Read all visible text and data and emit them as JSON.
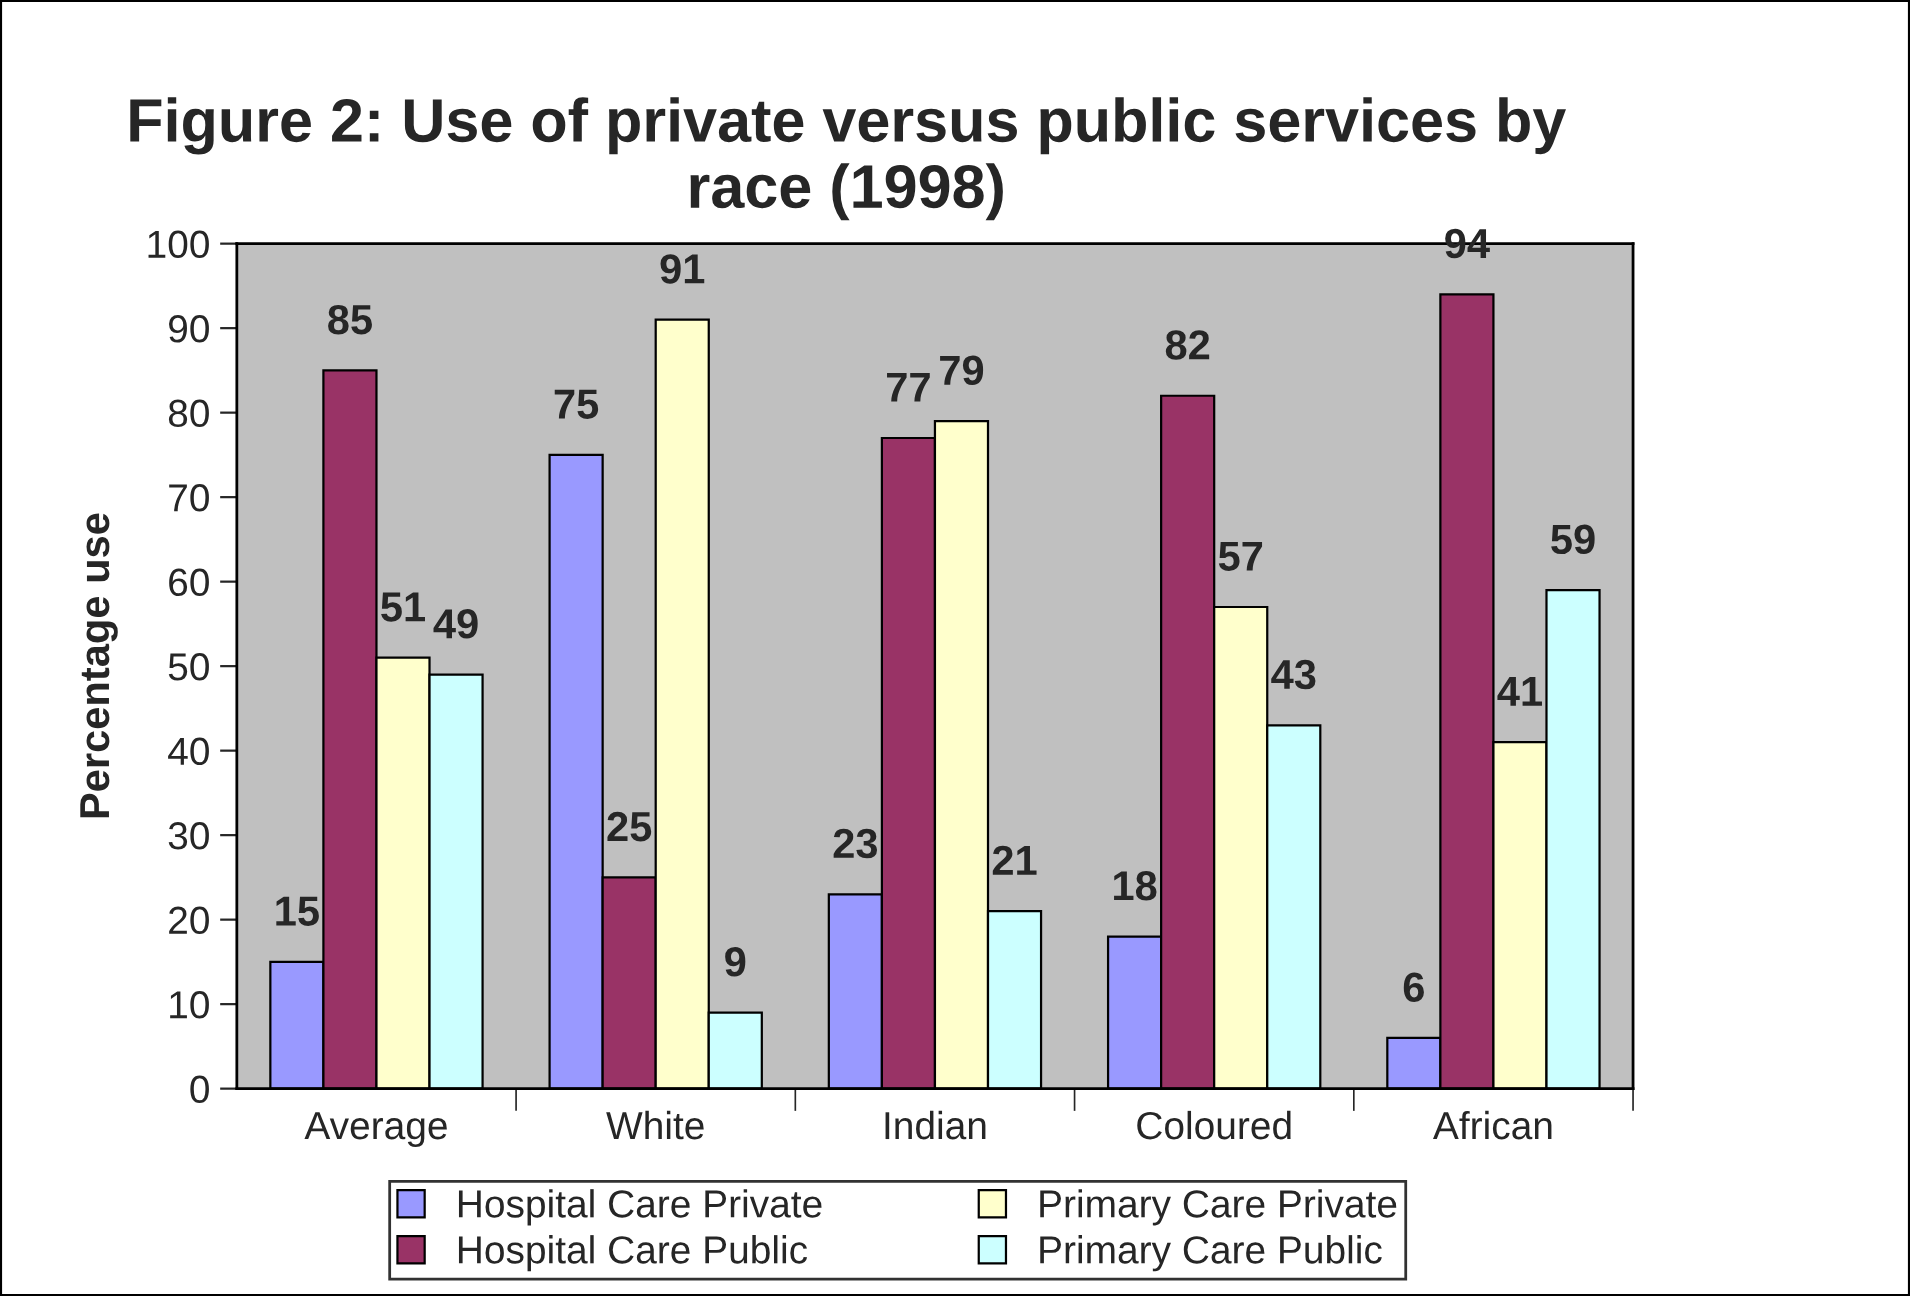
{
  "chart_data": {
    "type": "bar",
    "title": "Figure 2: Use of private versus public services by race (1998)",
    "ylabel": "Percentage use",
    "categories": [
      "Average",
      "White",
      "Indian",
      "Coloured",
      "African"
    ],
    "series": [
      {
        "name": "Hospital Care Private",
        "color": "#9999ff",
        "values": [
          15,
          75,
          23,
          18,
          6
        ]
      },
      {
        "name": "Hospital Care Public",
        "color": "#993366",
        "values": [
          85,
          25,
          77,
          82,
          94
        ]
      },
      {
        "name": "Primary Care Private",
        "color": "#ffffcc",
        "values": [
          51,
          91,
          79,
          57,
          41
        ]
      },
      {
        "name": "Primary Care Public",
        "color": "#ccffff",
        "values": [
          49,
          9,
          21,
          43,
          59
        ]
      }
    ],
    "ylim": [
      0,
      100
    ],
    "yticks": [
      0,
      10,
      20,
      30,
      40,
      50,
      60,
      70,
      80,
      90,
      100
    ],
    "grid": false,
    "legend": "bottom",
    "data_labels": true
  }
}
